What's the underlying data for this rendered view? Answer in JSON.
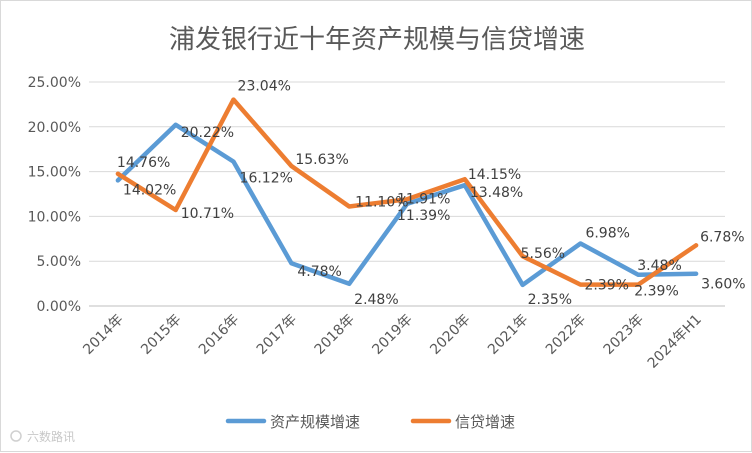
{
  "chart_data": {
    "type": "line",
    "title": "浦发银行近十年资产规模与信贷增速",
    "categories": [
      "2014年",
      "2015年",
      "2016年",
      "2017年",
      "2018年",
      "2019年",
      "2020年",
      "2021年",
      "2022年",
      "2023年",
      "2024年H1"
    ],
    "ylim": [
      0,
      25
    ],
    "yticks": [
      "0.00%",
      "5.00%",
      "10.00%",
      "15.00%",
      "20.00%",
      "25.00%"
    ],
    "grid": true,
    "legend": "bottom",
    "series": [
      {
        "name": "资产规模增速",
        "color": "#5B9BD5",
        "values": [
          14.02,
          20.22,
          16.12,
          4.78,
          2.48,
          11.39,
          13.48,
          2.35,
          6.98,
          3.48,
          3.6
        ],
        "labels": [
          "14.02%",
          "20.22%",
          "16.12%",
          "4.78%",
          "2.48%",
          "11.39%",
          "13.48%",
          "2.35%",
          "6.98%",
          "3.48%",
          "3.60%"
        ]
      },
      {
        "name": "信贷增速",
        "color": "#ED7D31",
        "values": [
          14.76,
          10.71,
          23.04,
          15.63,
          11.1,
          11.91,
          14.15,
          5.56,
          2.39,
          2.39,
          6.78
        ],
        "labels": [
          "14.76%",
          "10.71%",
          "23.04%",
          "15.63%",
          "11.10%",
          "11.91%",
          "14.15%",
          "5.56%",
          "2.39%",
          "2.39%",
          "6.78%"
        ]
      }
    ]
  },
  "watermark": "六数路讯"
}
